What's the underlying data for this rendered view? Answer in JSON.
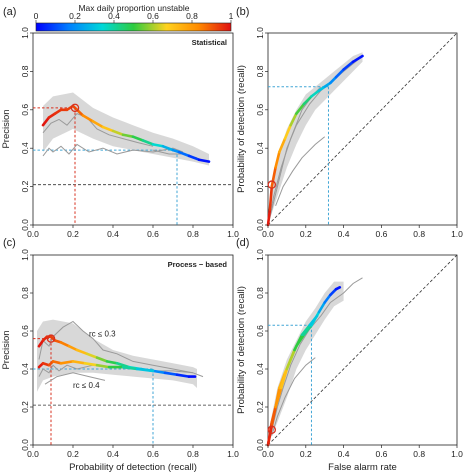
{
  "colorbar": {
    "title": "Max daily proportion unstable",
    "ticks": [
      "0",
      "0.2",
      "0.4",
      "0.6",
      "0.8",
      "1"
    ],
    "stops": [
      "#0000ff",
      "#0080ff",
      "#00d8d8",
      "#2ecc40",
      "#ffd21e",
      "#ff8c00",
      "#e01010"
    ]
  },
  "colors": {
    "band": "#d4d4d4",
    "grey_line": "#9a9a9a",
    "red_guide": "#d7301f",
    "blue_guide": "#41a6d6",
    "dashed": "#333333"
  },
  "chart_data": [
    {
      "panel": "(a)",
      "type": "line",
      "title": "Statistical",
      "xlabel": "",
      "ylabel": "Precision",
      "xlim": [
        0,
        1
      ],
      "ylim": [
        0,
        1
      ],
      "xticks": [
        "0.0",
        "0.2",
        "0.4",
        "0.6",
        "0.8",
        "1.0"
      ],
      "yticks": [
        "0.0",
        "0.2",
        "0.4",
        "0.6",
        "0.8",
        "1.0"
      ],
      "series": [
        {
          "kind": "grey",
          "x": [
            0.05,
            0.09,
            0.13,
            0.17,
            0.22,
            0.27,
            0.32,
            0.38,
            0.45,
            0.52,
            0.6
          ],
          "y": [
            0.48,
            0.53,
            0.55,
            0.52,
            0.58,
            0.56,
            0.5,
            0.47,
            0.45,
            0.43,
            0.41
          ]
        },
        {
          "kind": "grey",
          "x": [
            0.05,
            0.08,
            0.1,
            0.14,
            0.18,
            0.22,
            0.28,
            0.35,
            0.42,
            0.5,
            0.6,
            0.7,
            0.75
          ],
          "y": [
            0.36,
            0.4,
            0.38,
            0.41,
            0.37,
            0.42,
            0.38,
            0.4,
            0.37,
            0.39,
            0.38,
            0.4,
            0.38
          ]
        },
        {
          "kind": "grey",
          "x": [
            0.6,
            0.68,
            0.75,
            0.82
          ],
          "y": [
            0.39,
            0.37,
            0.37,
            0.35
          ]
        },
        {
          "kind": "main",
          "x": [
            0.05,
            0.08,
            0.11,
            0.14,
            0.17,
            0.2,
            0.22,
            0.25,
            0.3,
            0.35,
            0.4,
            0.45,
            0.5,
            0.55,
            0.6,
            0.65,
            0.7,
            0.73,
            0.78,
            0.83,
            0.88
          ],
          "y": [
            0.52,
            0.56,
            0.58,
            0.6,
            0.6,
            0.62,
            0.6,
            0.57,
            0.54,
            0.51,
            0.49,
            0.47,
            0.46,
            0.44,
            0.42,
            0.41,
            0.39,
            0.38,
            0.36,
            0.34,
            0.33
          ],
          "c": [
            1.0,
            0.98,
            0.96,
            0.95,
            0.94,
            0.93,
            0.92,
            0.86,
            0.8,
            0.74,
            0.66,
            0.58,
            0.52,
            0.45,
            0.38,
            0.3,
            0.22,
            0.18,
            0.1,
            0.05,
            0.0
          ]
        }
      ],
      "band": {
        "x": [
          0.05,
          0.1,
          0.2,
          0.3,
          0.4,
          0.5,
          0.6,
          0.7,
          0.8,
          0.88
        ],
        "lower": [
          0.38,
          0.45,
          0.5,
          0.45,
          0.41,
          0.39,
          0.37,
          0.35,
          0.33,
          0.31
        ],
        "upper": [
          0.62,
          0.67,
          0.69,
          0.61,
          0.56,
          0.52,
          0.48,
          0.45,
          0.41,
          0.37
        ]
      },
      "marker": {
        "x": 0.21,
        "y": 0.61
      },
      "guides": [
        {
          "color": "red",
          "x": 0.21,
          "y": 0.61
        },
        {
          "color": "blue",
          "x": 0.72,
          "y": 0.39
        }
      ],
      "hline": 0.21
    },
    {
      "panel": "(b)",
      "type": "line",
      "title": "",
      "xlabel": "",
      "ylabel": "Probability of detection (recall)",
      "xlim": [
        0,
        1
      ],
      "ylim": [
        0,
        1
      ],
      "xticks": [
        "0.0",
        "0.2",
        "0.4",
        "0.6",
        "0.8",
        "1.0"
      ],
      "yticks": [
        "0.0",
        "0.2",
        "0.4",
        "0.6",
        "0.8",
        "1.0"
      ],
      "diagonal": true,
      "series": [
        {
          "kind": "grey",
          "x": [
            0.0,
            0.02,
            0.05,
            0.1,
            0.15,
            0.22,
            0.28,
            0.33,
            0.4,
            0.45,
            0.5
          ],
          "y": [
            0.0,
            0.08,
            0.2,
            0.4,
            0.52,
            0.63,
            0.7,
            0.74,
            0.8,
            0.84,
            0.88
          ]
        },
        {
          "kind": "grey",
          "x": [
            0.0,
            0.03,
            0.07,
            0.12,
            0.18,
            0.24,
            0.28
          ],
          "y": [
            0.0,
            0.15,
            0.3,
            0.45,
            0.6,
            0.68,
            0.72
          ]
        },
        {
          "kind": "grey",
          "x": [
            0.04,
            0.08,
            0.13,
            0.18,
            0.25,
            0.3
          ],
          "y": [
            0.1,
            0.2,
            0.28,
            0.35,
            0.42,
            0.46
          ]
        },
        {
          "kind": "main",
          "x": [
            0.0,
            0.01,
            0.02,
            0.04,
            0.06,
            0.09,
            0.12,
            0.15,
            0.19,
            0.23,
            0.27,
            0.3,
            0.33,
            0.36,
            0.4,
            0.45,
            0.5
          ],
          "y": [
            0.0,
            0.08,
            0.2,
            0.3,
            0.38,
            0.45,
            0.52,
            0.58,
            0.63,
            0.67,
            0.7,
            0.72,
            0.74,
            0.77,
            0.81,
            0.85,
            0.88
          ],
          "c": [
            1.0,
            0.97,
            0.93,
            0.86,
            0.8,
            0.72,
            0.64,
            0.56,
            0.48,
            0.4,
            0.32,
            0.27,
            0.22,
            0.16,
            0.1,
            0.05,
            0.0
          ]
        }
      ],
      "band": {
        "x": [
          0.0,
          0.05,
          0.1,
          0.15,
          0.2,
          0.25,
          0.3,
          0.35,
          0.4,
          0.45,
          0.5
        ],
        "lower": [
          0.0,
          0.15,
          0.3,
          0.42,
          0.52,
          0.6,
          0.65,
          0.7,
          0.75,
          0.8,
          0.85
        ],
        "upper": [
          0.05,
          0.35,
          0.5,
          0.6,
          0.68,
          0.72,
          0.76,
          0.8,
          0.84,
          0.88,
          0.9
        ]
      },
      "marker": {
        "x": 0.02,
        "y": 0.21
      },
      "guides": [
        {
          "color": "blue",
          "x": 0.32,
          "y": 0.72
        }
      ]
    },
    {
      "panel": "(c)",
      "type": "line",
      "title": "Process − based",
      "xlabel": "Probability of detection (recall)",
      "ylabel": "Precision",
      "xlim": [
        0,
        1
      ],
      "ylim": [
        0,
        1
      ],
      "xticks": [
        "0.0",
        "0.2",
        "0.4",
        "0.6",
        "0.8",
        "1.0"
      ],
      "yticks": [
        "0.0",
        "0.2",
        "0.4",
        "0.6",
        "0.8",
        "1.0"
      ],
      "annotations": [
        {
          "text": "rᴄ ≤ 0.3",
          "x": 0.28,
          "y": 0.57
        },
        {
          "text": "rᴄ ≤ 0.4",
          "x": 0.2,
          "y": 0.3
        }
      ],
      "series": [
        {
          "kind": "grey",
          "x": [
            0.03,
            0.05,
            0.08,
            0.1,
            0.15,
            0.2,
            0.25,
            0.3,
            0.35,
            0.42,
            0.5,
            0.6,
            0.7,
            0.8,
            0.85
          ],
          "y": [
            0.45,
            0.55,
            0.52,
            0.57,
            0.62,
            0.65,
            0.6,
            0.56,
            0.5,
            0.48,
            0.44,
            0.42,
            0.4,
            0.38,
            0.36
          ]
        },
        {
          "kind": "grey",
          "x": [
            0.03,
            0.05,
            0.08,
            0.1,
            0.13,
            0.17,
            0.22,
            0.3,
            0.4,
            0.5,
            0.6,
            0.7,
            0.8
          ],
          "y": [
            0.36,
            0.4,
            0.38,
            0.42,
            0.39,
            0.42,
            0.4,
            0.42,
            0.41,
            0.4,
            0.39,
            0.39,
            0.38
          ]
        },
        {
          "kind": "grey",
          "x": [
            0.06,
            0.12,
            0.2,
            0.28,
            0.36
          ],
          "y": [
            0.32,
            0.36,
            0.38,
            0.36,
            0.34
          ]
        },
        {
          "kind": "main",
          "x": [
            0.03,
            0.05,
            0.07,
            0.09,
            0.11,
            0.14,
            0.18,
            0.22,
            0.27,
            0.32,
            0.37,
            0.42,
            0.48,
            0.54,
            0.6,
            0.66,
            0.72,
            0.78,
            0.81
          ],
          "y": [
            0.52,
            0.55,
            0.57,
            0.57,
            0.55,
            0.54,
            0.52,
            0.5,
            0.48,
            0.46,
            0.44,
            0.43,
            0.41,
            0.4,
            0.39,
            0.38,
            0.37,
            0.36,
            0.36
          ],
          "c": [
            1.0,
            0.98,
            0.96,
            0.95,
            0.92,
            0.88,
            0.82,
            0.76,
            0.68,
            0.6,
            0.52,
            0.45,
            0.38,
            0.3,
            0.22,
            0.15,
            0.08,
            0.03,
            0.0
          ]
        },
        {
          "kind": "main",
          "x": [
            0.03,
            0.05,
            0.08,
            0.1,
            0.14,
            0.2,
            0.26,
            0.32,
            0.38,
            0.45,
            0.52,
            0.6
          ],
          "y": [
            0.41,
            0.43,
            0.42,
            0.44,
            0.43,
            0.44,
            0.43,
            0.42,
            0.41,
            0.41,
            0.4,
            0.39
          ],
          "c": [
            1.0,
            0.97,
            0.93,
            0.9,
            0.85,
            0.78,
            0.7,
            0.62,
            0.55,
            0.45,
            0.35,
            0.25
          ]
        }
      ],
      "band": {
        "x": [
          0.02,
          0.05,
          0.1,
          0.2,
          0.3,
          0.4,
          0.5,
          0.6,
          0.7,
          0.8,
          0.82
        ],
        "lower": [
          0.28,
          0.34,
          0.36,
          0.38,
          0.38,
          0.37,
          0.36,
          0.35,
          0.34,
          0.32,
          0.3
        ],
        "upper": [
          0.6,
          0.65,
          0.66,
          0.64,
          0.56,
          0.5,
          0.47,
          0.45,
          0.43,
          0.41,
          0.4
        ]
      },
      "marker": {
        "x": 0.09,
        "y": 0.56
      },
      "guides": [
        {
          "color": "red",
          "x": 0.09,
          "y": 0.56
        },
        {
          "color": "blue",
          "x": 0.6,
          "y": 0.4
        }
      ],
      "hline": 0.21
    },
    {
      "panel": "(d)",
      "type": "line",
      "title": "",
      "xlabel": "False alarm rate",
      "ylabel": "Probability of detection (recall)",
      "xlim": [
        0,
        1
      ],
      "ylim": [
        0,
        1
      ],
      "xticks": [
        "0.0",
        "0.2",
        "0.4",
        "0.6",
        "0.8",
        "1.0"
      ],
      "yticks": [
        "0.0",
        "0.2",
        "0.4",
        "0.6",
        "0.8",
        "1.0"
      ],
      "diagonal": true,
      "series": [
        {
          "kind": "grey",
          "x": [
            0.0,
            0.02,
            0.05,
            0.08,
            0.12,
            0.17,
            0.22,
            0.28,
            0.33,
            0.4,
            0.45,
            0.5
          ],
          "y": [
            0.0,
            0.08,
            0.2,
            0.3,
            0.42,
            0.53,
            0.61,
            0.68,
            0.75,
            0.8,
            0.85,
            0.88
          ]
        },
        {
          "kind": "grey",
          "x": [
            0.02,
            0.05,
            0.09,
            0.14,
            0.2,
            0.25
          ],
          "y": [
            0.05,
            0.15,
            0.25,
            0.35,
            0.42,
            0.46
          ]
        },
        {
          "kind": "main",
          "x": [
            0.0,
            0.01,
            0.02,
            0.04,
            0.06,
            0.09,
            0.12,
            0.15,
            0.19,
            0.23,
            0.27,
            0.3,
            0.33,
            0.36,
            0.38
          ],
          "y": [
            0.0,
            0.06,
            0.12,
            0.2,
            0.3,
            0.38,
            0.45,
            0.52,
            0.58,
            0.63,
            0.7,
            0.75,
            0.79,
            0.82,
            0.83
          ],
          "c": [
            1.0,
            0.97,
            0.93,
            0.86,
            0.78,
            0.7,
            0.62,
            0.54,
            0.46,
            0.38,
            0.28,
            0.2,
            0.12,
            0.05,
            0.0
          ]
        },
        {
          "kind": "main",
          "x": [
            0.0,
            0.02,
            0.04,
            0.07,
            0.1,
            0.14,
            0.18,
            0.22,
            0.26
          ],
          "y": [
            0.0,
            0.1,
            0.2,
            0.3,
            0.4,
            0.5,
            0.58,
            0.63,
            0.68
          ],
          "c": [
            1.0,
            0.94,
            0.86,
            0.76,
            0.66,
            0.55,
            0.45,
            0.35,
            0.25
          ]
        }
      ],
      "band": {
        "x": [
          0.0,
          0.05,
          0.1,
          0.15,
          0.2,
          0.25,
          0.3,
          0.35,
          0.4
        ],
        "lower": [
          0.0,
          0.12,
          0.25,
          0.4,
          0.5,
          0.58,
          0.66,
          0.73,
          0.76
        ],
        "upper": [
          0.06,
          0.3,
          0.45,
          0.55,
          0.65,
          0.72,
          0.8,
          0.86,
          0.86
        ]
      },
      "marker": {
        "x": 0.02,
        "y": 0.08
      },
      "guides": [
        {
          "color": "blue",
          "x": 0.23,
          "y": 0.63
        }
      ]
    }
  ]
}
